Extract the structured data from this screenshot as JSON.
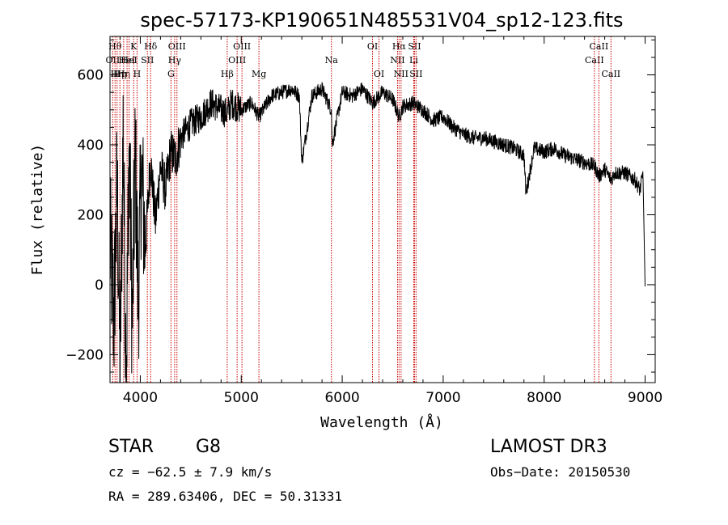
{
  "chart_data": {
    "type": "line",
    "title": "spec-57173-KP190651N485531V04_sp12-123.fits",
    "xlabel": "Wavelength (Å)",
    "ylabel": "Flux (relative)",
    "xlim": [
      3700,
      9100
    ],
    "ylim": [
      -280,
      710
    ],
    "xticks": [
      4000,
      5000,
      6000,
      7000,
      8000,
      9000
    ],
    "xtick_labels": [
      "4000",
      "5000",
      "6000",
      "7000",
      "8000",
      "9000"
    ],
    "yticks": [
      -200,
      0,
      200,
      400,
      600
    ],
    "ytick_labels": [
      "−200",
      "0",
      "200",
      "400",
      "600"
    ],
    "line_color": "#000000",
    "marker_color": "#cc0000",
    "series": [
      {
        "name": "flux",
        "x": [
          3700,
          3740,
          3770,
          3800,
          3830,
          3860,
          3890,
          3920,
          3950,
          3980,
          4010,
          4050,
          4100,
          4150,
          4200,
          4250,
          4300,
          4350,
          4400,
          4500,
          4600,
          4700,
          4800,
          4861,
          4900,
          5000,
          5100,
          5175,
          5300,
          5400,
          5500,
          5575,
          5600,
          5700,
          5800,
          5893,
          5900,
          6000,
          6100,
          6200,
          6300,
          6400,
          6500,
          6563,
          6600,
          6700,
          6800,
          6900,
          7000,
          7100,
          7200,
          7300,
          7400,
          7500,
          7600,
          7700,
          7800,
          7820,
          7900,
          8000,
          8100,
          8200,
          8300,
          8400,
          8500,
          8542,
          8600,
          8662,
          8700,
          8800,
          8900,
          8950,
          8980,
          9000
        ],
        "y": [
          120,
          -100,
          300,
          -250,
          450,
          -280,
          420,
          -120,
          380,
          -50,
          330,
          100,
          360,
          180,
          340,
          270,
          380,
          360,
          420,
          460,
          480,
          520,
          500,
          490,
          520,
          500,
          520,
          480,
          540,
          550,
          560,
          540,
          350,
          540,
          560,
          500,
          400,
          550,
          540,
          560,
          520,
          550,
          530,
          480,
          510,
          520,
          500,
          470,
          480,
          450,
          430,
          420,
          420,
          410,
          400,
          390,
          370,
          260,
          390,
          380,
          390,
          370,
          360,
          350,
          340,
          310,
          330,
          300,
          320,
          320,
          300,
          270,
          320,
          -5
        ]
      }
    ],
    "markers": [
      {
        "wavelength": 3727,
        "label": "OII",
        "row": 1
      },
      {
        "wavelength": 3750,
        "label": "Hθ",
        "row": 0
      },
      {
        "wavelength": 3770,
        "label": "Hη",
        "row": 2
      },
      {
        "wavelength": 3798,
        "label": "Hη",
        "row": 2
      },
      {
        "wavelength": 3835,
        "label": "Hη",
        "row": 2
      },
      {
        "wavelength": 3869,
        "label": "HeI",
        "row": 1
      },
      {
        "wavelength": 3889,
        "label": "HeI",
        "row": 1
      },
      {
        "wavelength": 3934,
        "label": "K",
        "row": 0
      },
      {
        "wavelength": 3968,
        "label": "H",
        "row": 2
      },
      {
        "wavelength": 4070,
        "label": "SII",
        "row": 1
      },
      {
        "wavelength": 4102,
        "label": "Hδ",
        "row": 0
      },
      {
        "wavelength": 4304,
        "label": "G",
        "row": 2
      },
      {
        "wavelength": 4340,
        "label": "Hγ",
        "row": 1
      },
      {
        "wavelength": 4363,
        "label": "OIII",
        "row": 0
      },
      {
        "wavelength": 4861,
        "label": "Hβ",
        "row": 2
      },
      {
        "wavelength": 4959,
        "label": "OIII",
        "row": 1
      },
      {
        "wavelength": 5007,
        "label": "OIII",
        "row": 0
      },
      {
        "wavelength": 5175,
        "label": "Mg",
        "row": 2
      },
      {
        "wavelength": 5893,
        "label": "Na",
        "row": 1
      },
      {
        "wavelength": 6300,
        "label": "OI",
        "row": 0
      },
      {
        "wavelength": 6364,
        "label": "OI",
        "row": 2
      },
      {
        "wavelength": 6548,
        "label": "NII",
        "row": 1
      },
      {
        "wavelength": 6563,
        "label": "Hα",
        "row": 0
      },
      {
        "wavelength": 6583,
        "label": "NII",
        "row": 2
      },
      {
        "wavelength": 6708,
        "label": "Li",
        "row": 1
      },
      {
        "wavelength": 6716,
        "label": "SII",
        "row": 0
      },
      {
        "wavelength": 6731,
        "label": "SII",
        "row": 2
      },
      {
        "wavelength": 8498,
        "label": "CaII",
        "row": 1
      },
      {
        "wavelength": 8542,
        "label": "CaII",
        "row": 0
      },
      {
        "wavelength": 8662,
        "label": "CaII",
        "row": 2
      }
    ]
  },
  "info": {
    "class_label": "STAR",
    "subclass_label": "G8",
    "survey_label": "LAMOST DR3",
    "cz_text": "cz = −62.5 ± 7.9 km/s",
    "obs_date_text": "Obs−Date: 20150530",
    "coords_text": "RA = 289.63406, DEC =  50.31331"
  }
}
